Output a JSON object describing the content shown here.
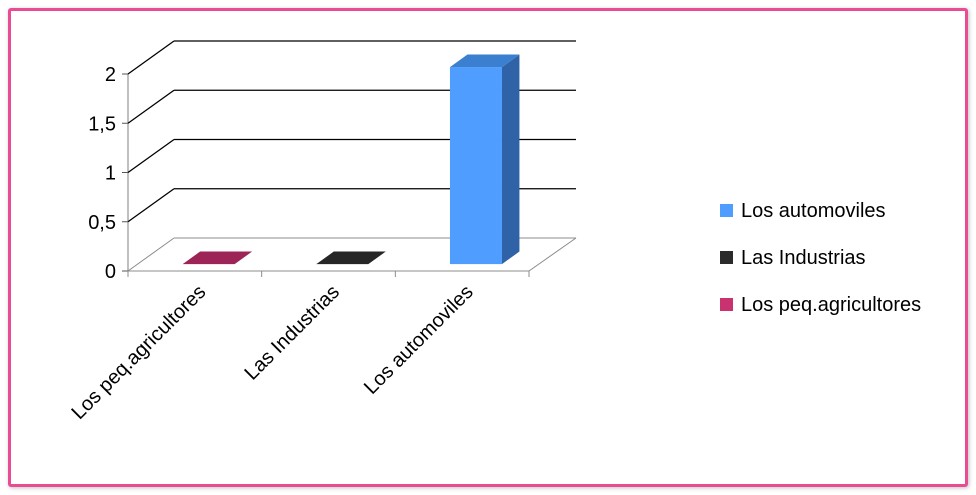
{
  "frame": {
    "border_color": "#ea4c94"
  },
  "chart_data": {
    "type": "bar",
    "categories": [
      "Los peq.agricultores",
      "Las Industrias",
      "Los automoviles"
    ],
    "values": [
      0,
      0,
      2
    ],
    "ylim": [
      0,
      2
    ],
    "yticks": [
      "0",
      "0,5",
      "1",
      "1,5",
      "2"
    ],
    "ytick_values": [
      0,
      0.5,
      1,
      1.5,
      2
    ],
    "grid": true,
    "legend_position": "right",
    "legend": [
      {
        "label": "Los automoviles",
        "color": "#4f9dff"
      },
      {
        "label": "Las Industrias",
        "color": "#2b2b2b"
      },
      {
        "label": "Los peq.agricultores",
        "color": "#c8326e"
      }
    ],
    "colors": {
      "Los peq.agricultores": {
        "front": "#c8326e",
        "top": "#9c2456",
        "side": "#8a1f4b"
      },
      "Las Industrias": {
        "front": "#2b2b2b",
        "top": "#262626",
        "side": "#1a1a1a"
      },
      "Los automoviles": {
        "front": "#4f9dff",
        "top": "#3a7fd0",
        "side": "#2f62a6"
      }
    }
  }
}
